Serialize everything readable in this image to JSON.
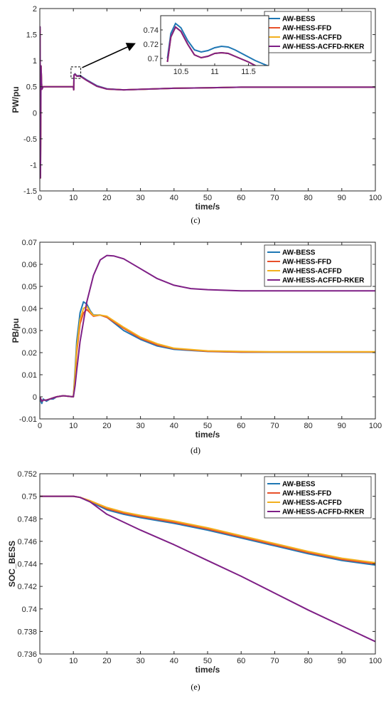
{
  "colors": {
    "AW-BESS": "#1f77b4",
    "AW-HESS-FFD": "#e8502a",
    "AW-HESS-ACFFD": "#f2b01e",
    "AW-HESS-ACFFD-RKER": "#7e1f86"
  },
  "chart_data": [
    {
      "type": "line",
      "caption": "(c)",
      "title": "",
      "xlabel": "time/s",
      "ylabel": "PW/pu",
      "xlim": [
        0,
        100
      ],
      "ylim": [
        -1.5,
        2
      ],
      "xticks": [
        0,
        10,
        20,
        30,
        40,
        50,
        60,
        70,
        80,
        90,
        100
      ],
      "yticks": [
        -1.5,
        -1,
        -0.5,
        0,
        0.5,
        1,
        1.5,
        2
      ],
      "ytick_labels": [
        "-1.5",
        "-1",
        "-0.5",
        "0",
        "0.5",
        "1",
        "1.5",
        "2"
      ],
      "legend": [
        "AW-BESS",
        "AW-HESS-FFD",
        "AW-HESS-ACFFD",
        "AW-HESS-ACFFD-RKER"
      ],
      "legend_position": "top-right",
      "series": [
        {
          "name": "AW-BESS",
          "x": [
            0,
            0.08,
            0.2,
            0.35,
            0.6,
            1,
            2,
            10,
            10.1,
            10.2,
            10.5,
            11,
            12,
            14,
            17,
            20,
            25,
            30,
            40,
            50,
            60,
            70,
            80,
            90,
            100
          ],
          "y": [
            0.5,
            1.6,
            -1.25,
            0.9,
            0.45,
            0.5,
            0.5,
            0.5,
            0.44,
            0.73,
            0.748,
            0.71,
            0.715,
            0.63,
            0.52,
            0.46,
            0.44,
            0.45,
            0.47,
            0.48,
            0.49,
            0.49,
            0.49,
            0.49,
            0.49
          ]
        },
        {
          "name": "AW-HESS-FFD",
          "x": [
            0,
            0.08,
            0.2,
            0.35,
            0.6,
            1,
            2,
            10,
            10.1,
            10.2,
            10.5,
            11,
            12,
            14,
            17,
            20,
            25,
            30,
            40,
            50,
            60,
            70,
            80,
            90,
            100
          ],
          "y": [
            0.5,
            1.6,
            -1.25,
            0.9,
            0.45,
            0.5,
            0.5,
            0.5,
            0.44,
            0.72,
            0.742,
            0.702,
            0.705,
            0.62,
            0.51,
            0.455,
            0.44,
            0.45,
            0.47,
            0.48,
            0.49,
            0.49,
            0.49,
            0.49,
            0.49
          ]
        },
        {
          "name": "AW-HESS-ACFFD",
          "x": [
            0,
            0.08,
            0.2,
            0.35,
            0.6,
            1,
            2,
            10,
            10.1,
            10.2,
            10.5,
            11,
            12,
            14,
            17,
            20,
            25,
            30,
            40,
            50,
            60,
            70,
            80,
            90,
            100
          ],
          "y": [
            0.5,
            1.6,
            -1.25,
            0.9,
            0.45,
            0.5,
            0.5,
            0.5,
            0.44,
            0.72,
            0.742,
            0.702,
            0.705,
            0.62,
            0.51,
            0.455,
            0.44,
            0.45,
            0.47,
            0.48,
            0.49,
            0.49,
            0.49,
            0.49,
            0.49
          ]
        },
        {
          "name": "AW-HESS-ACFFD-RKER",
          "x": [
            0,
            0.08,
            0.2,
            0.35,
            0.6,
            1,
            2,
            10,
            10.1,
            10.2,
            10.5,
            11,
            12,
            14,
            17,
            20,
            25,
            30,
            40,
            50,
            60,
            70,
            80,
            90,
            100
          ],
          "y": [
            0.5,
            1.65,
            -1.25,
            0.9,
            0.45,
            0.5,
            0.5,
            0.5,
            0.44,
            0.72,
            0.742,
            0.702,
            0.705,
            0.62,
            0.51,
            0.455,
            0.44,
            0.45,
            0.47,
            0.48,
            0.49,
            0.49,
            0.49,
            0.49,
            0.49
          ]
        }
      ],
      "inset": {
        "xlim": [
          10.2,
          11.8
        ],
        "ylim": [
          0.69,
          0.76
        ],
        "xticks": [
          10.5,
          11,
          11.5
        ],
        "yticks": [
          0.7,
          0.72,
          0.74
        ],
        "series": [
          {
            "name": "AW-BESS",
            "x": [
              10.3,
              10.35,
              10.42,
              10.5,
              10.6,
              10.7,
              10.8,
              10.9,
              11,
              11.1,
              11.2,
              11.3,
              11.4,
              11.5,
              11.6,
              11.7,
              11.8
            ],
            "y": [
              0.7,
              0.735,
              0.749,
              0.743,
              0.725,
              0.712,
              0.709,
              0.711,
              0.715,
              0.717,
              0.716,
              0.712,
              0.707,
              0.702,
              0.697,
              0.693,
              0.689
            ]
          },
          {
            "name": "AW-HESS-FFD",
            "x": [
              10.3,
              10.35,
              10.42,
              10.5,
              10.6,
              10.7,
              10.8,
              10.9,
              11,
              11.1,
              11.2,
              11.3,
              11.4,
              11.5,
              11.6,
              11.7
            ],
            "y": [
              0.695,
              0.73,
              0.744,
              0.738,
              0.72,
              0.705,
              0.701,
              0.703,
              0.707,
              0.708,
              0.707,
              0.703,
              0.699,
              0.695,
              0.69,
              0.686
            ]
          },
          {
            "name": "AW-HESS-ACFFD",
            "x": [
              10.3,
              10.35,
              10.42,
              10.5,
              10.6,
              10.7,
              10.8,
              10.9,
              11,
              11.1,
              11.2,
              11.3,
              11.4,
              11.5,
              11.6,
              11.7
            ],
            "y": [
              0.695,
              0.73,
              0.744,
              0.738,
              0.72,
              0.705,
              0.701,
              0.703,
              0.707,
              0.708,
              0.707,
              0.703,
              0.699,
              0.695,
              0.69,
              0.686
            ]
          },
          {
            "name": "AW-HESS-ACFFD-RKER",
            "x": [
              10.3,
              10.35,
              10.42,
              10.5,
              10.6,
              10.7,
              10.8,
              10.9,
              11,
              11.1,
              11.2,
              11.3,
              11.4,
              11.5,
              11.6,
              11.7
            ],
            "y": [
              0.695,
              0.73,
              0.744,
              0.738,
              0.72,
              0.705,
              0.701,
              0.703,
              0.707,
              0.708,
              0.707,
              0.703,
              0.699,
              0.695,
              0.69,
              0.686
            ]
          }
        ]
      }
    },
    {
      "type": "line",
      "caption": "(d)",
      "title": "",
      "xlabel": "time/s",
      "ylabel": "PB/pu",
      "xlim": [
        0,
        100
      ],
      "ylim": [
        -0.01,
        0.07
      ],
      "xticks": [
        0,
        10,
        20,
        30,
        40,
        50,
        60,
        70,
        80,
        90,
        100
      ],
      "yticks": [
        -0.01,
        0,
        0.01,
        0.02,
        0.03,
        0.04,
        0.05,
        0.06,
        0.07
      ],
      "ytick_labels": [
        "-0.01",
        "0",
        "0.01",
        "0.02",
        "0.03",
        "0.04",
        "0.05",
        "0.06",
        "0.07"
      ],
      "legend": [
        "AW-BESS",
        "AW-HESS-FFD",
        "AW-HESS-ACFFD",
        "AW-HESS-ACFFD-RKER"
      ],
      "legend_position": "top-right",
      "series": [
        {
          "name": "AW-BESS",
          "x": [
            0,
            0.3,
            0.6,
            1,
            2,
            3,
            4,
            5,
            7,
            10,
            10.5,
            11,
            12,
            13,
            14,
            15,
            16,
            18,
            20,
            25,
            30,
            35,
            40,
            50,
            60,
            70,
            80,
            90,
            100
          ],
          "y": [
            0,
            -0.002,
            -0.003,
            -0.001,
            -0.002,
            -0.001,
            -0.001,
            0,
            0.0005,
            0,
            0.012,
            0.025,
            0.038,
            0.043,
            0.042,
            0.039,
            0.037,
            0.037,
            0.036,
            0.03,
            0.026,
            0.023,
            0.0215,
            0.0205,
            0.0202,
            0.0202,
            0.0202,
            0.0202,
            0.0202
          ]
        },
        {
          "name": "AW-HESS-FFD",
          "x": [
            0,
            0.3,
            0.6,
            1,
            2,
            3,
            4,
            5,
            7,
            10,
            10.5,
            11,
            12,
            13,
            14,
            15,
            16,
            18,
            20,
            25,
            30,
            35,
            40,
            50,
            60,
            70,
            80,
            90,
            100
          ],
          "y": [
            0,
            -0.001,
            -0.002,
            -0.0015,
            -0.0015,
            -0.001,
            -0.0005,
            0,
            0.0005,
            0,
            0.008,
            0.02,
            0.033,
            0.038,
            0.0395,
            0.038,
            0.0365,
            0.037,
            0.036,
            0.031,
            0.0265,
            0.0235,
            0.0218,
            0.0206,
            0.0203,
            0.0203,
            0.0203,
            0.0203,
            0.0203
          ]
        },
        {
          "name": "AW-HESS-ACFFD",
          "x": [
            0,
            0.3,
            0.6,
            1,
            2,
            3,
            4,
            5,
            7,
            10,
            10.5,
            11,
            12,
            13,
            14,
            15,
            16,
            18,
            20,
            25,
            30,
            35,
            40,
            50,
            60,
            70,
            80,
            90,
            100
          ],
          "y": [
            0,
            -0.001,
            -0.002,
            -0.0015,
            -0.0015,
            -0.001,
            -0.0005,
            0,
            0.0005,
            0,
            0.01,
            0.022,
            0.035,
            0.04,
            0.041,
            0.0385,
            0.0368,
            0.037,
            0.0365,
            0.0315,
            0.027,
            0.024,
            0.022,
            0.0208,
            0.0205,
            0.0204,
            0.0204,
            0.0204,
            0.0204
          ]
        },
        {
          "name": "AW-HESS-ACFFD-RKER",
          "x": [
            0,
            0.3,
            0.6,
            1,
            2,
            3,
            4,
            5,
            7,
            10,
            10.5,
            11,
            12,
            14,
            16,
            18,
            20,
            22,
            25,
            30,
            35,
            40,
            45,
            50,
            60,
            70,
            80,
            90,
            100
          ],
          "y": [
            0,
            -0.001,
            -0.002,
            -0.0015,
            -0.0015,
            -0.001,
            -0.0005,
            0,
            0.0005,
            0,
            0.005,
            0.012,
            0.025,
            0.043,
            0.055,
            0.062,
            0.064,
            0.0638,
            0.0625,
            0.058,
            0.0535,
            0.0505,
            0.049,
            0.0485,
            0.048,
            0.048,
            0.048,
            0.048,
            0.048
          ]
        }
      ]
    },
    {
      "type": "line",
      "caption": "(e)",
      "title": "",
      "xlabel": "time/s",
      "ylabel": "SOC_BESS",
      "xlim": [
        0,
        100
      ],
      "ylim": [
        0.736,
        0.752
      ],
      "xticks": [
        0,
        10,
        20,
        30,
        40,
        50,
        60,
        70,
        80,
        90,
        100
      ],
      "yticks": [
        0.736,
        0.738,
        0.74,
        0.742,
        0.744,
        0.746,
        0.748,
        0.75,
        0.752
      ],
      "ytick_labels": [
        "0.736",
        "0.738",
        "0.74",
        "0.742",
        "0.744",
        "0.746",
        "0.748",
        "0.75",
        "0.752"
      ],
      "legend": [
        "AW-BESS",
        "AW-HESS-FFD",
        "AW-HESS-ACFFD",
        "AW-HESS-ACFFD-RKER"
      ],
      "legend_position": "top-right",
      "series": [
        {
          "name": "AW-BESS",
          "x": [
            0,
            10,
            12,
            15,
            20,
            25,
            30,
            40,
            50,
            60,
            70,
            80,
            90,
            100
          ],
          "y": [
            0.75,
            0.75,
            0.7499,
            0.7495,
            0.7488,
            0.7484,
            0.7481,
            0.7476,
            0.747,
            0.7463,
            0.7456,
            0.7449,
            0.7443,
            0.7439
          ]
        },
        {
          "name": "AW-HESS-FFD",
          "x": [
            0,
            10,
            12,
            15,
            20,
            25,
            30,
            40,
            50,
            60,
            70,
            80,
            90,
            100
          ],
          "y": [
            0.75,
            0.75,
            0.7499,
            0.7496,
            0.7489,
            0.7485,
            0.7482,
            0.7477,
            0.7471,
            0.7464,
            0.7457,
            0.745,
            0.7444,
            0.744
          ]
        },
        {
          "name": "AW-HESS-ACFFD",
          "x": [
            0,
            10,
            12,
            15,
            20,
            25,
            30,
            40,
            50,
            60,
            70,
            80,
            90,
            100
          ],
          "y": [
            0.75,
            0.75,
            0.7499,
            0.7496,
            0.749,
            0.7486,
            0.7483,
            0.7478,
            0.7472,
            0.7465,
            0.7458,
            0.7451,
            0.7445,
            0.7441
          ]
        },
        {
          "name": "AW-HESS-ACFFD-RKER",
          "x": [
            0,
            10,
            12,
            15,
            20,
            25,
            30,
            40,
            50,
            60,
            70,
            80,
            90,
            100
          ],
          "y": [
            0.75,
            0.75,
            0.7499,
            0.7495,
            0.7484,
            0.7477,
            0.747,
            0.7457,
            0.7443,
            0.7429,
            0.7414,
            0.7399,
            0.7385,
            0.7371
          ]
        }
      ]
    }
  ]
}
